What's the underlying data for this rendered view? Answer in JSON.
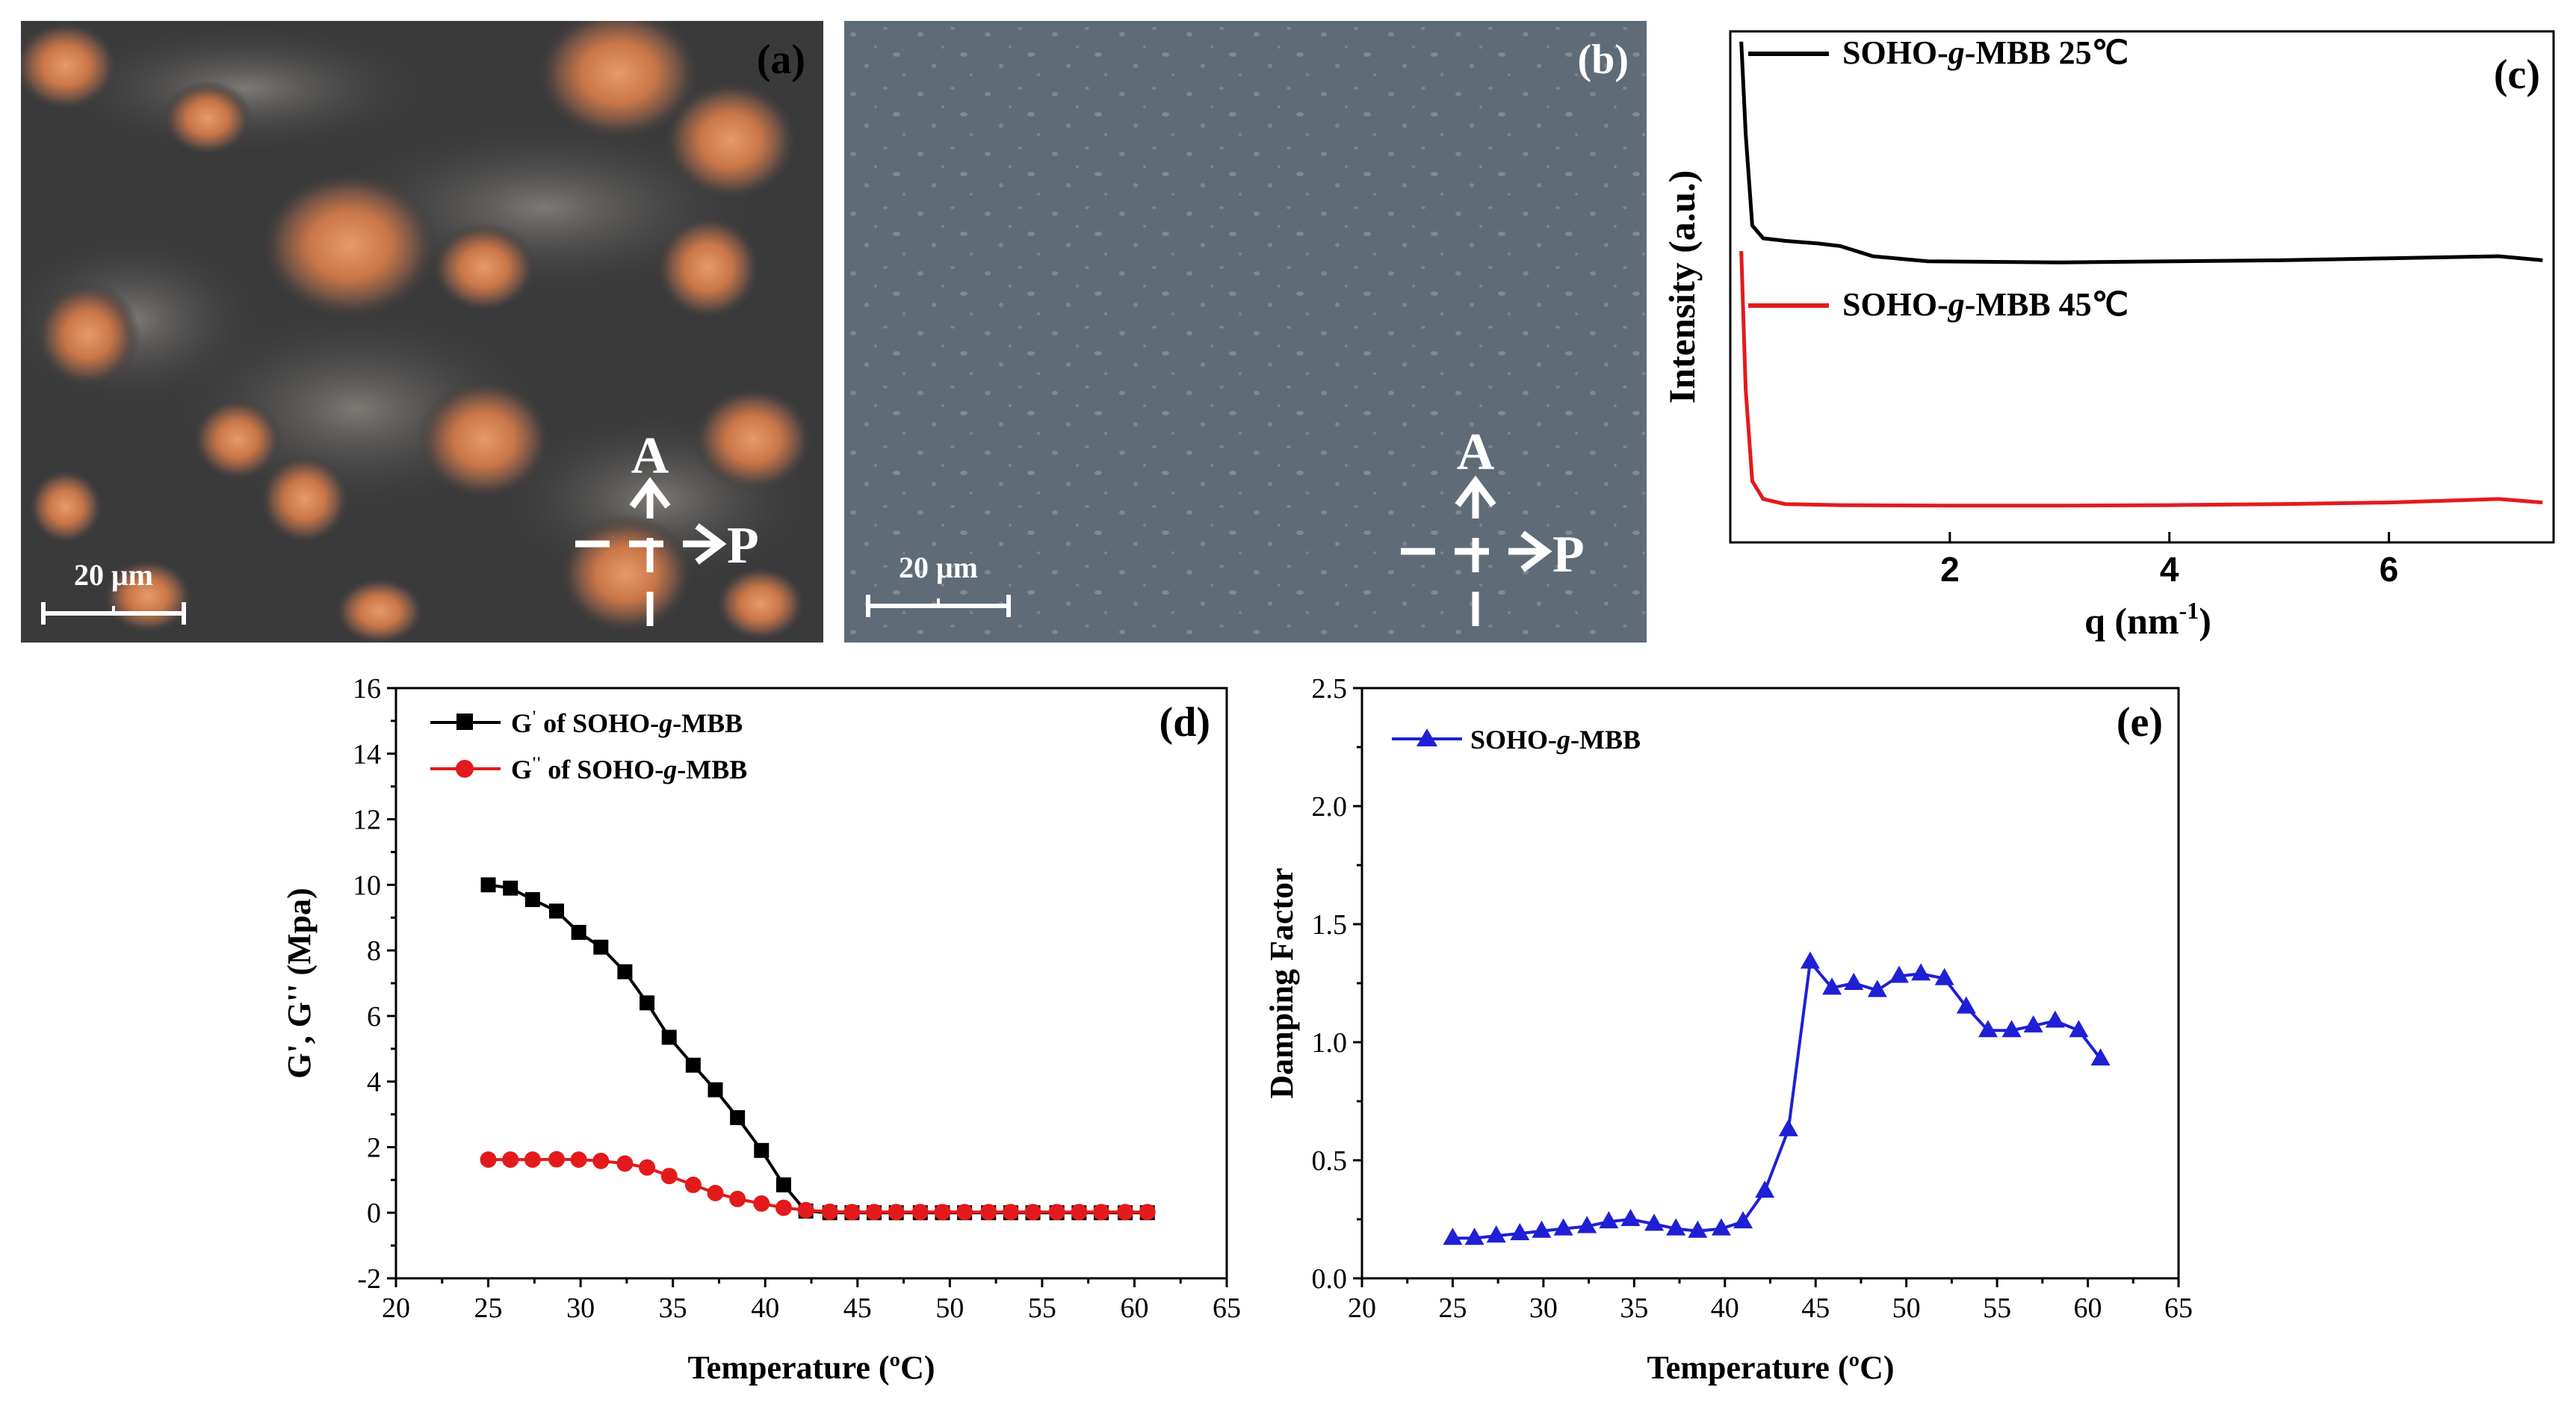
{
  "panels": {
    "a": {
      "label": "(a)",
      "scale_bar": "20 μm",
      "analyzer": "A",
      "polarizer": "P"
    },
    "b": {
      "label": "(b)",
      "scale_bar": "20 μm",
      "analyzer": "A",
      "polarizer": "P"
    }
  },
  "colors": {
    "black": "#000000",
    "red": "#e31a1c",
    "blue": "#1f1fd6"
  },
  "chart_data": [
    {
      "id": "c",
      "type": "line",
      "panel_label": "(c)",
      "xlabel": "q (nm",
      "xlabel_sup": "-1",
      "xlabel_close": ")",
      "ylabel": "Intensity (a.u.)",
      "xlim": [
        0,
        7.5
      ],
      "xticks": [
        "2",
        "4",
        "6"
      ],
      "xtick_values": [
        2,
        4,
        6
      ],
      "series": [
        {
          "name_pre": "SOHO-",
          "name_it": "g",
          "name_post": "-MBB 25℃",
          "color": "#000000",
          "x": [
            0.1,
            0.14,
            0.2,
            0.3,
            0.5,
            0.8,
            1.0,
            1.3,
            1.8,
            3,
            4,
            5,
            6,
            7,
            7.4
          ],
          "y": [
            0.98,
            0.8,
            0.62,
            0.595,
            0.59,
            0.585,
            0.58,
            0.56,
            0.55,
            0.548,
            0.55,
            0.552,
            0.556,
            0.56,
            0.552
          ]
        },
        {
          "name_pre": "SOHO-",
          "name_it": "g",
          "name_post": "-MBB 45℃",
          "color": "#e31a1c",
          "x": [
            0.1,
            0.14,
            0.2,
            0.3,
            0.5,
            1,
            2,
            3,
            4,
            5,
            6,
            7,
            7.4
          ],
          "y": [
            0.57,
            0.3,
            0.12,
            0.085,
            0.075,
            0.073,
            0.072,
            0.072,
            0.073,
            0.075,
            0.078,
            0.085,
            0.078
          ]
        }
      ]
    },
    {
      "id": "d",
      "type": "line",
      "panel_label": "(d)",
      "xlabel": "Temperature (ºC)",
      "ylabel": "G', G'' (Mpa)",
      "xlim": [
        20,
        65
      ],
      "ylim": [
        -2,
        16
      ],
      "xticks": [
        "20",
        "25",
        "30",
        "35",
        "40",
        "45",
        "50",
        "55",
        "60",
        "65"
      ],
      "yticks": [
        "-2",
        "0",
        "2",
        "4",
        "6",
        "8",
        "10",
        "12",
        "14",
        "16"
      ],
      "series": [
        {
          "name": "G' of SOHO-g-MBB",
          "legend_pre": "G",
          "legend_sup": "'",
          "legend_post": " of SOHO-",
          "legend_it": "g",
          "legend_end": "-MBB",
          "color": "#000000",
          "marker": "square",
          "x": [
            25,
            26.2,
            27.4,
            28.7,
            29.9,
            31.1,
            32.4,
            33.6,
            34.8,
            36.1,
            37.3,
            38.5,
            39.8,
            41,
            42.2,
            43.5,
            44.7,
            45.9,
            47.1,
            48.4,
            49.6,
            50.8,
            52.1,
            53.3,
            54.5,
            55.8,
            57,
            58.2,
            59.5,
            60.7
          ],
          "y": [
            10,
            9.9,
            9.55,
            9.2,
            8.55,
            8.1,
            7.35,
            6.4,
            5.35,
            4.5,
            3.75,
            2.9,
            1.9,
            0.85,
            0.05,
            0,
            0,
            0,
            0,
            0,
            0,
            0,
            0,
            0,
            0,
            0,
            0,
            0,
            0,
            0
          ]
        },
        {
          "name": "G'' of SOHO-g-MBB",
          "legend_pre": "G",
          "legend_sup": "''",
          "legend_post": " of SOHO-",
          "legend_it": "g",
          "legend_end": "-MBB",
          "color": "#e31a1c",
          "marker": "circle",
          "x": [
            25,
            26.2,
            27.4,
            28.7,
            29.9,
            31.1,
            32.4,
            33.6,
            34.8,
            36.1,
            37.3,
            38.5,
            39.8,
            41,
            42.2,
            43.5,
            44.7,
            45.9,
            47.1,
            48.4,
            49.6,
            50.8,
            52.1,
            53.3,
            54.5,
            55.8,
            57,
            58.2,
            59.5,
            60.7
          ],
          "y": [
            1.62,
            1.62,
            1.62,
            1.63,
            1.62,
            1.58,
            1.5,
            1.38,
            1.12,
            0.85,
            0.6,
            0.42,
            0.28,
            0.15,
            0.08,
            0.03,
            0.02,
            0.02,
            0.02,
            0.02,
            0.02,
            0.02,
            0.02,
            0.02,
            0.02,
            0.02,
            0.02,
            0.02,
            0.02,
            0.02
          ]
        }
      ]
    },
    {
      "id": "e",
      "type": "line",
      "panel_label": "(e)",
      "xlabel": "Temperature (ºC)",
      "ylabel": "Damping Factor",
      "xlim": [
        20,
        65
      ],
      "ylim": [
        0,
        2.5
      ],
      "xticks": [
        "20",
        "25",
        "30",
        "35",
        "40",
        "45",
        "50",
        "55",
        "60",
        "65"
      ],
      "yticks": [
        "0.0",
        "0.5",
        "1.0",
        "1.5",
        "2.0",
        "2.5"
      ],
      "series": [
        {
          "name": "SOHO-g-MBB",
          "legend_pre": "SOHO-",
          "legend_it": "g",
          "legend_end": "-MBB",
          "color": "#1f1fd6",
          "marker": "triangle",
          "x": [
            25,
            26.2,
            27.4,
            28.7,
            29.9,
            31.1,
            32.4,
            33.6,
            34.8,
            36.1,
            37.3,
            38.5,
            39.8,
            41,
            42.2,
            43.5,
            44.7,
            45.9,
            47.1,
            48.4,
            49.6,
            50.8,
            52.1,
            53.3,
            54.5,
            55.8,
            57,
            58.2,
            59.5,
            60.7
          ],
          "y": [
            0.17,
            0.17,
            0.18,
            0.19,
            0.2,
            0.21,
            0.22,
            0.24,
            0.25,
            0.23,
            0.21,
            0.2,
            0.21,
            0.24,
            0.37,
            0.63,
            1.34,
            1.23,
            1.25,
            1.22,
            1.28,
            1.29,
            1.27,
            1.15,
            1.05,
            1.05,
            1.07,
            1.09,
            1.05,
            0.93
          ]
        }
      ]
    }
  ]
}
